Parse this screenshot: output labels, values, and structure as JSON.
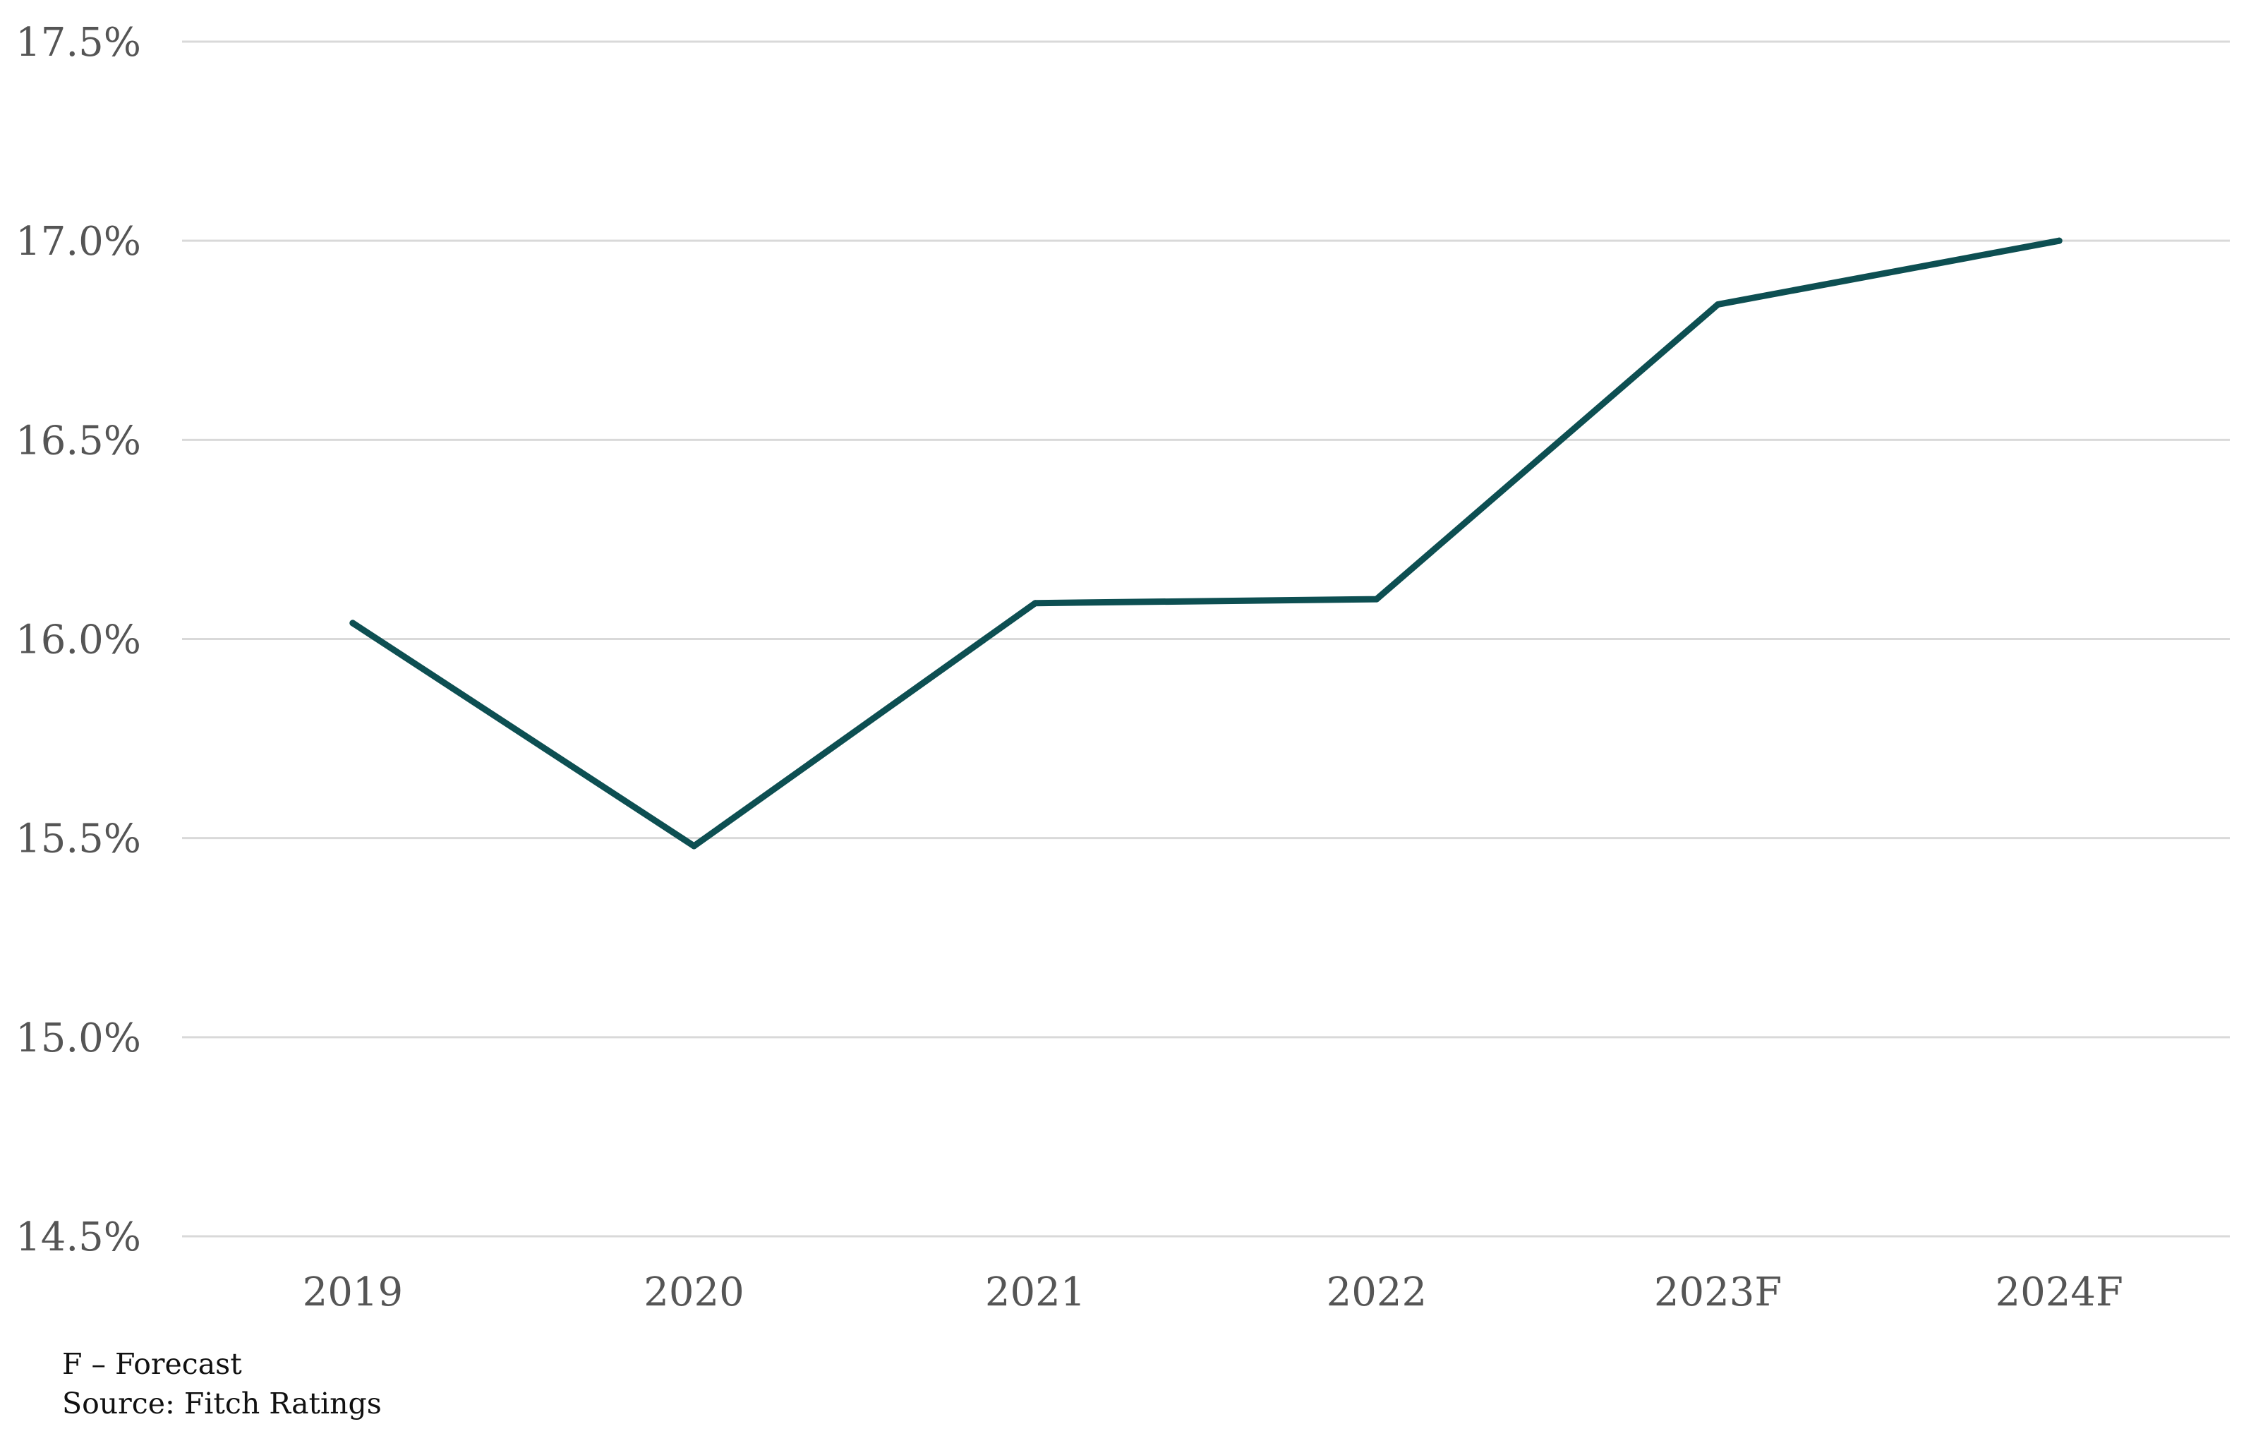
{
  "chart_data": {
    "type": "line",
    "title": "",
    "xlabel": "",
    "ylabel": "",
    "categories": [
      "2019",
      "2020",
      "2021",
      "2022",
      "2023F",
      "2024F"
    ],
    "series": [
      {
        "values": [
          16.04,
          15.48,
          16.09,
          16.1,
          16.84,
          17.0
        ],
        "color": "#0d4f52"
      }
    ],
    "ylim": [
      14.5,
      17.5
    ],
    "yticks": [
      14.5,
      15.0,
      15.5,
      16.0,
      16.5,
      17.0,
      17.5
    ],
    "ytick_labels": [
      "14.5%",
      "15.0%",
      "15.5%",
      "16.0%",
      "16.5%",
      "17.0%",
      "17.5%"
    ],
    "grid": true,
    "gridline_color": "#d9d9d9",
    "legend": "none"
  },
  "notes": {
    "forecast": "F – Forecast",
    "source": "Source: Fitch Ratings"
  }
}
